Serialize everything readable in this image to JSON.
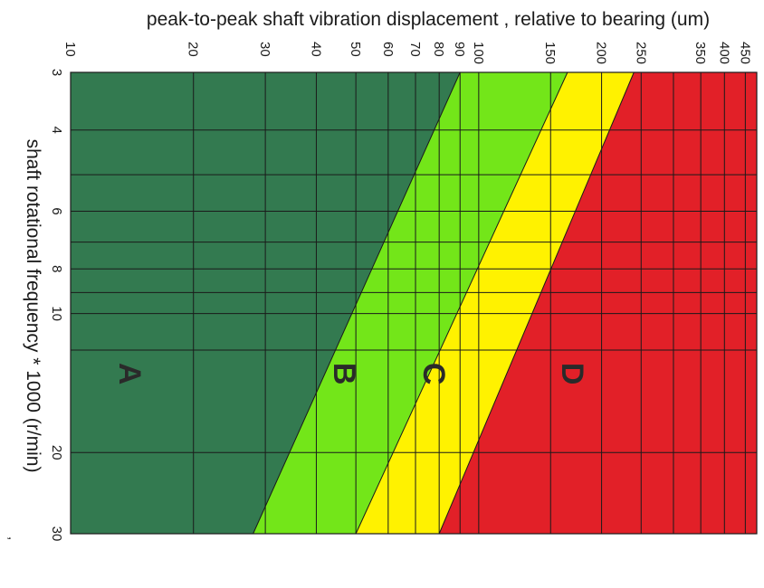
{
  "chart_data": {
    "type": "area",
    "title": "",
    "top_axis_label": "peak-to-peak shaft vibration displacement , relative to bearing (um)",
    "side_axis_label": "shaft rotational frequency * 1000 (r/min)",
    "stray_mark": ",",
    "x_scale": "log",
    "y_scale": "log",
    "x_ticks": [
      10,
      20,
      30,
      40,
      50,
      60,
      70,
      80,
      90,
      100,
      150,
      200,
      250,
      350,
      400,
      450
    ],
    "x_extra_gridlines": [
      300
    ],
    "xlim": [
      10,
      480
    ],
    "y_ticks": [
      3,
      4,
      6,
      8,
      10,
      20,
      30
    ],
    "y_extra_gridlines": [
      5,
      7,
      9,
      12
    ],
    "ylim": [
      3,
      30
    ],
    "zones": [
      {
        "name": "A",
        "color": "#337a50",
        "label_at": {
          "rpm_k": 13.5,
          "um": 14
        }
      },
      {
        "name": "B",
        "color": "#73e619",
        "label_at": {
          "rpm_k": 13.5,
          "um": 47
        }
      },
      {
        "name": "C",
        "color": "#fff200",
        "label_at": {
          "rpm_k": 13.5,
          "um": 78
        }
      },
      {
        "name": "D",
        "color": "#e22028",
        "label_at": {
          "rpm_k": 13.5,
          "um": 170
        }
      }
    ],
    "boundaries": [
      {
        "between": "A/B",
        "points": [
          {
            "rpm_k": 3,
            "um": 90
          },
          {
            "rpm_k": 30,
            "um": 28
          }
        ]
      },
      {
        "between": "B/C",
        "points": [
          {
            "rpm_k": 3,
            "um": 165
          },
          {
            "rpm_k": 30,
            "um": 50
          }
        ]
      },
      {
        "between": "C/D",
        "points": [
          {
            "rpm_k": 3,
            "um": 240
          },
          {
            "rpm_k": 30,
            "um": 80
          }
        ]
      }
    ]
  }
}
